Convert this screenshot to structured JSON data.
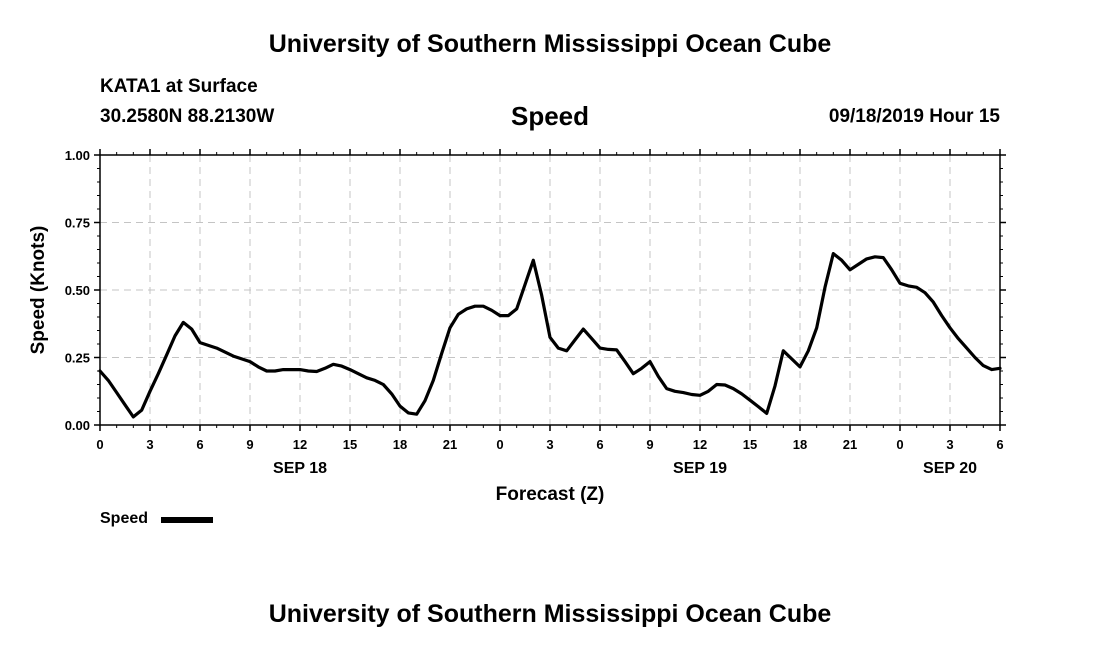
{
  "header": {
    "title": "University of Southern Mississippi Ocean Cube",
    "station": "KATA1 at Surface",
    "coords": "30.2580N 88.2130W",
    "variable": "Speed",
    "datetime": "09/18/2019 Hour 15"
  },
  "footer": {
    "title": "University of Southern Mississippi Ocean Cube"
  },
  "legend": {
    "label": "Speed"
  },
  "chart_data": {
    "type": "line",
    "title": "Speed",
    "xlabel": "Forecast (Z)",
    "ylabel": "Speed (Knots)",
    "xlim": [
      0,
      54
    ],
    "ylim": [
      0,
      1.0
    ],
    "yticks": [
      0,
      0.25,
      0.5,
      0.75,
      1.0
    ],
    "ytick_labels": [
      "0.00",
      "0.25",
      "0.50",
      "0.75",
      "1.00"
    ],
    "xticks": [
      0,
      3,
      6,
      9,
      12,
      15,
      18,
      21,
      24,
      27,
      30,
      33,
      36,
      39,
      42,
      45,
      48,
      51,
      54
    ],
    "xtick_labels": [
      "0",
      "3",
      "6",
      "9",
      "12",
      "15",
      "18",
      "21",
      "0",
      "3",
      "6",
      "9",
      "12",
      "15",
      "18",
      "21",
      "0",
      "3",
      "6"
    ],
    "date_labels": [
      {
        "x": 12,
        "label": "SEP 18"
      },
      {
        "x": 36,
        "label": "SEP 19"
      },
      {
        "x": 51,
        "label": "SEP 20"
      }
    ],
    "grid": true,
    "series": [
      {
        "name": "Speed",
        "color": "#000000",
        "x": [
          0,
          0.5,
          1,
          1.5,
          2,
          2.5,
          3,
          3.5,
          4,
          4.5,
          5,
          5.5,
          6,
          6.5,
          7,
          7.5,
          8,
          8.5,
          9,
          9.5,
          10,
          10.5,
          11,
          11.5,
          12,
          12.5,
          13,
          13.5,
          14,
          14.5,
          15,
          15.5,
          16,
          16.5,
          17,
          17.5,
          18,
          18.5,
          19,
          19.5,
          20,
          20.5,
          21,
          21.5,
          22,
          22.5,
          23,
          23.5,
          24,
          24.5,
          25,
          25.5,
          26,
          26.5,
          27,
          27.5,
          28,
          28.5,
          29,
          29.5,
          30,
          30.5,
          31,
          31.5,
          32,
          32.5,
          33,
          33.5,
          34,
          34.5,
          35,
          35.5,
          36,
          36.5,
          37,
          37.5,
          38,
          38.5,
          39,
          39.5,
          40,
          40.5,
          41,
          41.5,
          42,
          42.5,
          43,
          43.5,
          44,
          44.5,
          45,
          45.5,
          46,
          46.5,
          47,
          47.5,
          48,
          48.5,
          49,
          49.5,
          50,
          50.5,
          51,
          51.5,
          52,
          52.5,
          53,
          53.5,
          54
        ],
        "values": [
          0.2,
          0.165,
          0.12,
          0.075,
          0.03,
          0.055,
          0.125,
          0.19,
          0.26,
          0.33,
          0.38,
          0.355,
          0.305,
          0.295,
          0.285,
          0.27,
          0.255,
          0.245,
          0.235,
          0.215,
          0.2,
          0.2,
          0.205,
          0.205,
          0.205,
          0.2,
          0.198,
          0.21,
          0.225,
          0.218,
          0.205,
          0.19,
          0.175,
          0.165,
          0.15,
          0.115,
          0.07,
          0.045,
          0.04,
          0.09,
          0.165,
          0.265,
          0.36,
          0.41,
          0.43,
          0.44,
          0.44,
          0.425,
          0.405,
          0.405,
          0.43,
          0.52,
          0.61,
          0.48,
          0.325,
          0.285,
          0.275,
          0.315,
          0.355,
          0.32,
          0.285,
          0.28,
          0.278,
          0.235,
          0.19,
          0.21,
          0.235,
          0.18,
          0.135,
          0.125,
          0.12,
          0.113,
          0.11,
          0.125,
          0.15,
          0.148,
          0.135,
          0.115,
          0.092,
          0.068,
          0.043,
          0.145,
          0.275,
          0.245,
          0.215,
          0.275,
          0.36,
          0.51,
          0.635,
          0.61,
          0.575,
          0.595,
          0.615,
          0.623,
          0.62,
          0.575,
          0.525,
          0.515,
          0.51,
          0.49,
          0.455,
          0.405,
          0.36,
          0.32,
          0.285,
          0.25,
          0.22,
          0.205,
          0.21
        ]
      }
    ]
  }
}
